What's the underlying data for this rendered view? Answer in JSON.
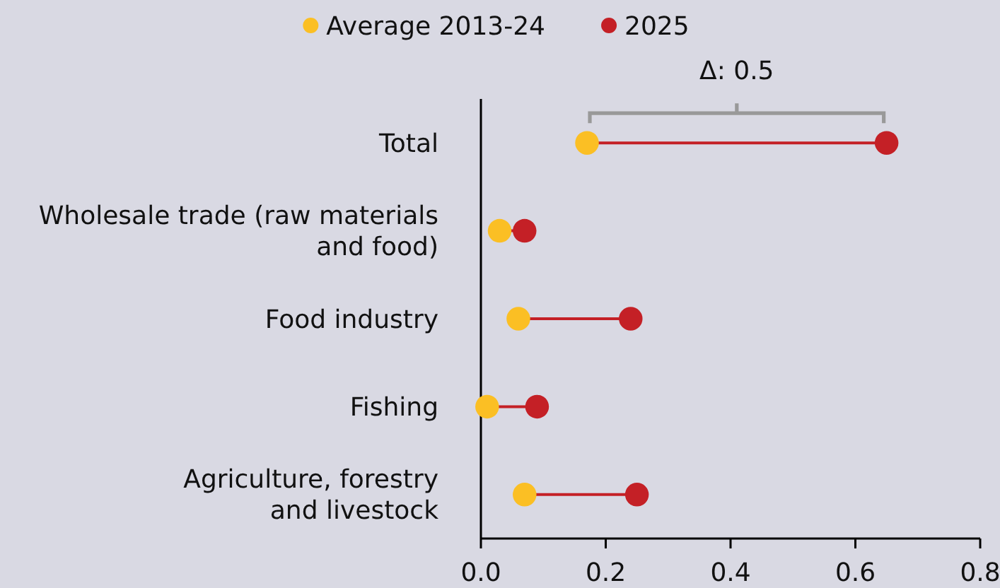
{
  "chart_data": {
    "type": "scatter",
    "orientation": "horizontal",
    "categories": [
      "Total",
      "Wholesale trade (raw materials and food)",
      "Food industry",
      "Fishing",
      "Agriculture, forestry and livestock"
    ],
    "series": [
      {
        "name": "Average 2013-24",
        "color": "#fbbf24",
        "values": [
          0.17,
          0.03,
          0.06,
          0.01,
          0.07
        ]
      },
      {
        "name": "2025",
        "color": "#c42026",
        "values": [
          0.65,
          0.07,
          0.24,
          0.09,
          0.25
        ]
      }
    ],
    "xlim": [
      0,
      0.8
    ],
    "xticks": [
      {
        "value": 0,
        "label": "0.0"
      },
      0.2,
      0.4,
      0.6,
      0.8
    ],
    "annotations": [
      "Δ: 0.5"
    ],
    "legend": "top",
    "marker": "circle",
    "grid": false
  }
}
